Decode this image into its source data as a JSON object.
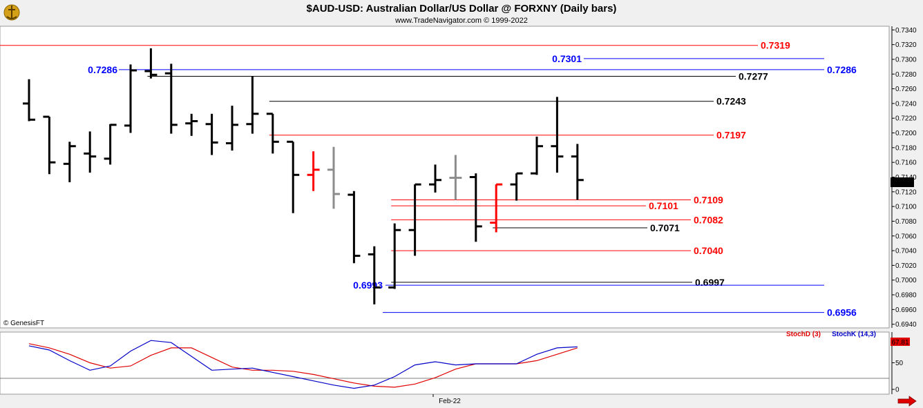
{
  "header": {
    "title": "$AUD-USD:  Australian Dollar/US Dollar @ FORXNY  (Daily bars)",
    "subtitle": "www.TradeNavigator.com © 1999-2022"
  },
  "logo_icon": "genesis-logo-icon",
  "copyright": "© GenesisFT",
  "last_price_badge": "0.7136",
  "colors": {
    "background": "#ffffff",
    "frame": "#f0f0f0",
    "red": "#ff0000",
    "blue": "#0000ff",
    "black": "#000000",
    "gray": "#8c8c8c",
    "stoch_red": "#e00000",
    "stoch_blue": "#0000c8"
  },
  "chart_data": [
    {
      "type": "ohlc",
      "title": "$AUD-USD:  Australian Dollar/US Dollar @ FORXNY  (Daily bars)",
      "ylim": [
        0.6935,
        0.7345
      ],
      "y_ticks": [
        "0.7340",
        "0.7320",
        "0.7300",
        "0.7280",
        "0.7260",
        "0.7240",
        "0.7220",
        "0.7200",
        "0.7180",
        "0.7160",
        "0.7140",
        "0.7120",
        "0.7100",
        "0.7080",
        "0.7060",
        "0.7040",
        "0.7020",
        "0.7000",
        "0.6980",
        "0.6960",
        "0.6940"
      ],
      "x_tick_labels": [
        "Feb-22"
      ],
      "bars": [
        {
          "o": 0.724,
          "h": 0.7273,
          "l": 0.7216,
          "c": 0.7218,
          "color": "black"
        },
        {
          "o": 0.7222,
          "h": 0.7222,
          "l": 0.7144,
          "c": 0.716,
          "color": "black"
        },
        {
          "o": 0.7158,
          "h": 0.7188,
          "l": 0.7133,
          "c": 0.7182,
          "color": "black"
        },
        {
          "o": 0.7172,
          "h": 0.7202,
          "l": 0.7146,
          "c": 0.7168,
          "color": "black"
        },
        {
          "o": 0.7165,
          "h": 0.7212,
          "l": 0.7157,
          "c": 0.7211,
          "color": "black"
        },
        {
          "o": 0.721,
          "h": 0.7293,
          "l": 0.72,
          "c": 0.7285,
          "color": "black"
        },
        {
          "o": 0.7284,
          "h": 0.7315,
          "l": 0.7274,
          "c": 0.7279,
          "color": "black"
        },
        {
          "o": 0.7281,
          "h": 0.7294,
          "l": 0.7199,
          "c": 0.7211,
          "color": "black"
        },
        {
          "o": 0.7213,
          "h": 0.7226,
          "l": 0.7196,
          "c": 0.7216,
          "color": "black"
        },
        {
          "o": 0.7212,
          "h": 0.7226,
          "l": 0.717,
          "c": 0.7187,
          "color": "black"
        },
        {
          "o": 0.7186,
          "h": 0.7237,
          "l": 0.7176,
          "c": 0.7211,
          "color": "black"
        },
        {
          "o": 0.7212,
          "h": 0.7277,
          "l": 0.7199,
          "c": 0.7226,
          "color": "black"
        },
        {
          "o": 0.7226,
          "h": 0.7226,
          "l": 0.7172,
          "c": 0.7188,
          "color": "black"
        },
        {
          "o": 0.7188,
          "h": 0.7188,
          "l": 0.7091,
          "c": 0.7143,
          "color": "black"
        },
        {
          "o": 0.7143,
          "h": 0.7175,
          "l": 0.7121,
          "c": 0.715,
          "color": "red"
        },
        {
          "o": 0.715,
          "h": 0.7181,
          "l": 0.7097,
          "c": 0.7117,
          "color": "gray"
        },
        {
          "o": 0.7116,
          "h": 0.7121,
          "l": 0.7023,
          "c": 0.7033,
          "color": "black"
        },
        {
          "o": 0.7035,
          "h": 0.7046,
          "l": 0.6967,
          "c": 0.699,
          "color": "black"
        },
        {
          "o": 0.699,
          "h": 0.7077,
          "l": 0.6988,
          "c": 0.7068,
          "color": "black"
        },
        {
          "o": 0.7068,
          "h": 0.713,
          "l": 0.7033,
          "c": 0.713,
          "color": "black"
        },
        {
          "o": 0.713,
          "h": 0.7157,
          "l": 0.7119,
          "c": 0.7136,
          "color": "black"
        },
        {
          "o": 0.7139,
          "h": 0.717,
          "l": 0.7109,
          "c": 0.7139,
          "color": "gray"
        },
        {
          "o": 0.714,
          "h": 0.7145,
          "l": 0.7052,
          "c": 0.7073,
          "color": "black"
        },
        {
          "o": 0.7078,
          "h": 0.713,
          "l": 0.7065,
          "c": 0.713,
          "color": "red"
        },
        {
          "o": 0.713,
          "h": 0.7145,
          "l": 0.7108,
          "c": 0.7145,
          "color": "black"
        },
        {
          "o": 0.7145,
          "h": 0.7195,
          "l": 0.7143,
          "c": 0.7182,
          "color": "black"
        },
        {
          "o": 0.7182,
          "h": 0.7249,
          "l": 0.7146,
          "c": 0.7168,
          "color": "black"
        },
        {
          "o": 0.7168,
          "h": 0.7185,
          "l": 0.7109,
          "c": 0.7136,
          "color": "black"
        }
      ],
      "levels": [
        {
          "value": 0.7319,
          "label": "0.7319",
          "color": "red",
          "start_bar": 0,
          "label_side": "right"
        },
        {
          "value": 0.7301,
          "label": "0.7301",
          "color": "blue",
          "start_bar": 26,
          "label_side": "left"
        },
        {
          "value": 0.7286,
          "label": "0.7286",
          "color": "blue",
          "start_bar": 6,
          "label_side": "both"
        },
        {
          "value": 0.7277,
          "label": "0.7277",
          "color": "black",
          "start_bar": 6,
          "label_side": "right"
        },
        {
          "value": 0.7243,
          "label": "0.7243",
          "color": "black",
          "start_bar": 12,
          "label_side": "right"
        },
        {
          "value": 0.7197,
          "label": "0.7197",
          "color": "red",
          "start_bar": 12,
          "label_side": "right"
        },
        {
          "value": 0.7109,
          "label": "0.7109",
          "color": "red",
          "start_bar": 18,
          "label_side": "right"
        },
        {
          "value": 0.7101,
          "label": "0.7101",
          "color": "red",
          "start_bar": 18,
          "label_side": "right"
        },
        {
          "value": 0.7082,
          "label": "0.7082",
          "color": "red",
          "start_bar": 18,
          "label_side": "right"
        },
        {
          "value": 0.7071,
          "label": "0.7071",
          "color": "black",
          "start_bar": 23,
          "label_side": "right"
        },
        {
          "value": 0.704,
          "label": "0.7040",
          "color": "red",
          "start_bar": 18,
          "label_side": "right"
        },
        {
          "value": 0.6997,
          "label": "0.6997",
          "color": "black",
          "start_bar": 18,
          "label_side": "right"
        },
        {
          "value": 0.6993,
          "label": "0.6993",
          "color": "blue",
          "start_bar": 18,
          "label_side": "left"
        },
        {
          "value": 0.6956,
          "label": "0.6956",
          "color": "blue",
          "start_bar": 17,
          "label_side": "right"
        }
      ]
    },
    {
      "type": "line",
      "series": [
        {
          "name": "StochD (3)",
          "color": "red",
          "values": [
            86,
            78,
            66,
            50,
            40,
            44,
            64,
            78,
            78,
            60,
            42,
            36,
            36,
            34,
            28,
            20,
            12,
            6,
            4,
            10,
            22,
            38,
            48,
            48,
            48,
            54,
            66,
            78
          ]
        },
        {
          "name": "StochK (14,3)",
          "color": "blue",
          "values": [
            82,
            74,
            54,
            36,
            44,
            72,
            92,
            88,
            62,
            36,
            38,
            40,
            32,
            24,
            16,
            8,
            2,
            8,
            24,
            46,
            52,
            46,
            48,
            48,
            48,
            66,
            78,
            80
          ]
        }
      ],
      "ylim": [
        0,
        100
      ],
      "y_ticks": [
        "50",
        "0"
      ],
      "last_value_badge": "67.81"
    }
  ]
}
